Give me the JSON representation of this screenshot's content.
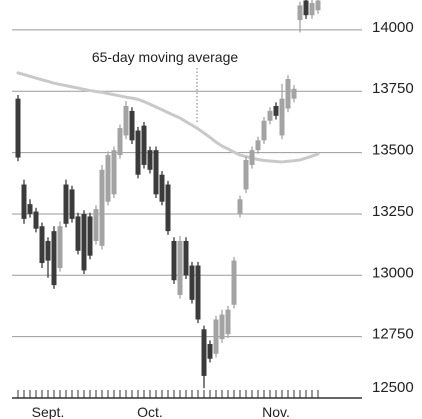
{
  "chart_data": {
    "type": "candlestick",
    "categories": [
      null,
      null,
      null,
      null,
      null,
      "Sept.",
      null,
      null,
      null,
      null,
      null,
      null,
      null,
      null,
      null,
      null,
      null,
      null,
      null,
      null,
      null,
      null,
      "Oct.",
      null,
      null,
      null,
      null,
      null,
      null,
      null,
      null,
      null,
      null,
      null,
      null,
      null,
      null,
      null,
      null,
      null,
      null,
      null,
      null,
      "Nov.",
      null,
      null,
      null,
      null,
      null,
      null,
      null
    ],
    "open": [
      13720,
      13370,
      13290,
      13260,
      13200,
      13140,
      13180,
      13030,
      13370,
      13350,
      13240,
      13250,
      13240,
      13140,
      13120,
      13300,
      13330,
      13490,
      13570,
      13670,
      13590,
      13610,
      13510,
      13510,
      13410,
      13370,
      13140,
      12920,
      13140,
      13040,
      13040,
      12780,
      12720,
      12680,
      12740,
      12760,
      12880,
      13250,
      13350,
      13450,
      13510,
      13550,
      13630,
      13690,
      13570,
      13680,
      13720,
      14040,
      14120,
      14060,
      14080
    ],
    "high": [
      13735,
      13390,
      13310,
      13275,
      13215,
      13155,
      13200,
      13220,
      13390,
      13365,
      13255,
      13265,
      13255,
      13285,
      13450,
      13505,
      13525,
      13615,
      13710,
      13685,
      13605,
      13625,
      13525,
      13525,
      13425,
      13385,
      13155,
      13160,
      13155,
      13055,
      13055,
      12795,
      12735,
      12835,
      12860,
      12875,
      13075,
      13325,
      13485,
      13525,
      13565,
      13645,
      13685,
      13705,
      13780,
      13815,
      13775,
      14115,
      14122,
      14122,
      14122
    ],
    "low": [
      13465,
      13210,
      13235,
      13175,
      13030,
      12990,
      12945,
      13015,
      13195,
      13215,
      13085,
      13005,
      13065,
      13125,
      13105,
      13285,
      13315,
      13475,
      13555,
      13535,
      13395,
      13435,
      13415,
      13315,
      13285,
      13165,
      12965,
      12905,
      12985,
      12885,
      12805,
      12540,
      12645,
      12665,
      12725,
      12745,
      12865,
      13235,
      13335,
      13435,
      13495,
      13535,
      13615,
      13635,
      13555,
      13665,
      13705,
      13990,
      14045,
      14045,
      14065
    ],
    "close": [
      13480,
      13230,
      13250,
      13190,
      13050,
      13060,
      12960,
      13200,
      13210,
      13230,
      13100,
      13020,
      13080,
      13270,
      13430,
      13490,
      13510,
      13600,
      13690,
      13550,
      13410,
      13450,
      13430,
      13330,
      13300,
      13180,
      12980,
      13140,
      13000,
      12900,
      12820,
      12590,
      12660,
      12820,
      12840,
      12860,
      13060,
      13310,
      13470,
      13510,
      13550,
      13630,
      13670,
      13650,
      13720,
      13800,
      13760,
      14100,
      14060,
      14110,
      14120
    ],
    "up_color": "#a3a3a3",
    "down_color": "#3b3b3b",
    "moving_average": {
      "label": "65-day moving average",
      "color": "#c9c9c9",
      "values": [
        13825,
        13818,
        13811,
        13804,
        13797,
        13790,
        13783,
        13778,
        13773,
        13768,
        13763,
        13758,
        13753,
        13749,
        13746,
        13741,
        13736,
        13731,
        13726,
        13722,
        13717,
        13708,
        13697,
        13686,
        13675,
        13663,
        13652,
        13641,
        13626,
        13612,
        13597,
        13580,
        13562,
        13543,
        13527,
        13515,
        13502,
        13490,
        13484,
        13478,
        13472,
        13468,
        13466,
        13464,
        13462,
        13465,
        13467,
        13470,
        13478,
        13486,
        13494
      ]
    },
    "ylim": [
      12500,
      14122
    ],
    "yticks": [
      12500,
      12750,
      13000,
      13250,
      13500,
      13750,
      14000
    ],
    "grid": true
  }
}
